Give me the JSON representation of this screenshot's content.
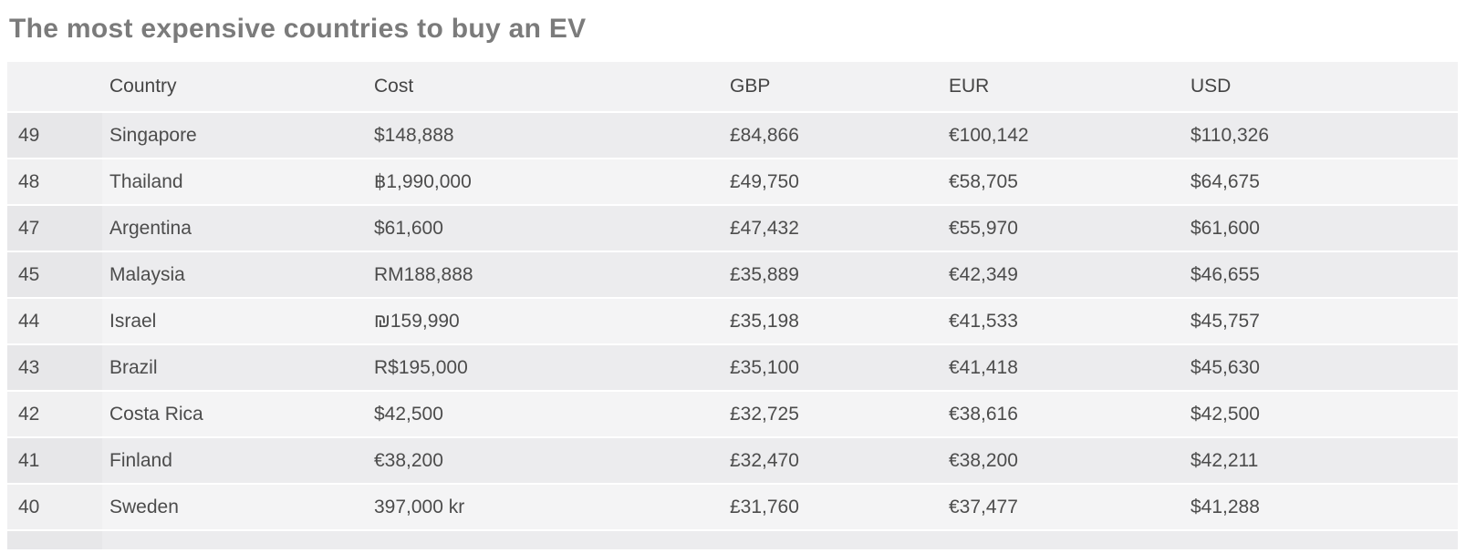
{
  "chart_data": {
    "type": "table",
    "title": "The most expensive countries to buy an EV",
    "columns": [
      "",
      "Country",
      "Cost",
      "GBP",
      "EUR",
      "USD"
    ],
    "rows": [
      {
        "rank": "49",
        "country": "Singapore",
        "cost": "$148,888",
        "gbp": "£84,866",
        "eur": "€100,142",
        "usd": "$110,326",
        "shade": "dark"
      },
      {
        "rank": "48",
        "country": "Thailand",
        "cost": "฿1,990,000",
        "gbp": "£49,750",
        "eur": "€58,705",
        "usd": "$64,675",
        "shade": "light"
      },
      {
        "rank": "47",
        "country": "Argentina",
        "cost": "$61,600",
        "gbp": "£47,432",
        "eur": "€55,970",
        "usd": "$61,600",
        "shade": "dark"
      },
      {
        "rank": "45",
        "country": "Malaysia",
        "cost": "RM188,888",
        "gbp": "£35,889",
        "eur": "€42,349",
        "usd": "$46,655",
        "shade": "dark"
      },
      {
        "rank": "44",
        "country": "Israel",
        "cost": "₪159,990",
        "gbp": "£35,198",
        "eur": "€41,533",
        "usd": "$45,757",
        "shade": "light"
      },
      {
        "rank": "43",
        "country": "Brazil",
        "cost": "R$195,000",
        "gbp": "£35,100",
        "eur": "€41,418",
        "usd": "$45,630",
        "shade": "dark"
      },
      {
        "rank": "42",
        "country": "Costa Rica",
        "cost": "$42,500",
        "gbp": "£32,725",
        "eur": "€38,616",
        "usd": "$42,500",
        "shade": "light"
      },
      {
        "rank": "41",
        "country": "Finland",
        "cost": "€38,200",
        "gbp": "£32,470",
        "eur": "€38,200",
        "usd": "$42,211",
        "shade": "dark"
      },
      {
        "rank": "40",
        "country": "Sweden",
        "cost": "397,000 kr",
        "gbp": "£31,760",
        "eur": "€37,477",
        "usd": "$41,288",
        "shade": "light"
      }
    ],
    "layout": {
      "striping": "rows shaded by rank parity (odd ranks darker); rank 46 absent so rows 47 and 45 are both dark",
      "bottom_partial_row_visible": true
    }
  },
  "colors": {
    "title_text": "#7b7b7b",
    "header_bg": "#f2f2f3",
    "header_text": "#454545",
    "cell_text": "#4c4c4c",
    "row_dark": "#ececee",
    "row_dark_rank": "#e7e7e9",
    "row_light": "#f4f4f5",
    "row_light_rank": "#f0f0f1"
  }
}
